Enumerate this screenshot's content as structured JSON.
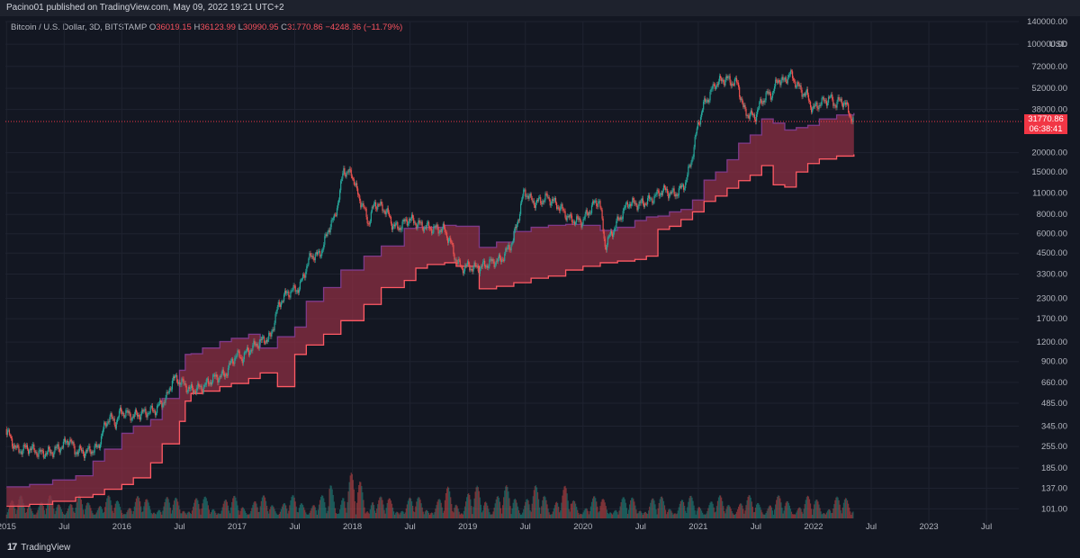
{
  "header": {
    "published": "Pacino01 published on TradingView.com, May 09, 2022 19:21 UTC+2"
  },
  "legend": {
    "symbol": "Bitcoin / U.S. Dollar, 3D, BITSTAMP",
    "open_label": "O",
    "open": "36019.15",
    "high_label": "H",
    "high": "36123.99",
    "low_label": "L",
    "low": "30990.95",
    "close_label": "C",
    "close": "31770.86",
    "change": "−4248.36 (−11.79%)"
  },
  "price_tag": {
    "price": "31770.86",
    "countdown": "06:38:41"
  },
  "footer": {
    "brand": "TradingView",
    "logo": "17"
  },
  "colors": {
    "background": "#131722",
    "up": "#26a69a",
    "down": "#ef5350",
    "band_fill": "#8c2f43",
    "band_bright": "#f7525f",
    "band_edge_top": "#7e3a8a",
    "band_edge_bottom": "#ff5a64",
    "last_price": "#f23645"
  },
  "chart_data": {
    "type": "line",
    "title": "Bitcoin / U.S. Dollar, 3D, BITSTAMP",
    "y_scale": "log",
    "y_unit": "USD",
    "y_ticks": [
      101,
      137,
      185,
      255,
      345,
      485,
      660,
      900,
      1200,
      1700,
      2300,
      3300,
      4500,
      6000,
      8000,
      11000,
      15000,
      20000,
      38000,
      52000,
      72000,
      100000,
      140000
    ],
    "y_tick_labels": [
      "101.00",
      "137.00",
      "185.00",
      "255.00",
      "345.00",
      "485.00",
      "660.00",
      "900.00",
      "1200.00",
      "1700.00",
      "2300.00",
      "3300.00",
      "4500.00",
      "6000.00",
      "8000.00",
      "11000.00",
      "15000.00",
      "20000.00",
      "38000.00",
      "52000.00",
      "72000.00",
      "100000.00",
      "140000.00"
    ],
    "ylim": [
      90,
      140000
    ],
    "x_ticks": [
      2015.0,
      2015.5,
      2016.0,
      2016.5,
      2017.0,
      2017.5,
      2018.0,
      2018.5,
      2019.0,
      2019.5,
      2020.0,
      2020.5,
      2021.0,
      2021.5,
      2022.0,
      2022.5,
      2023.0,
      2023.5
    ],
    "x_tick_labels": [
      "2015",
      "Jul",
      "2016",
      "Jul",
      "2017",
      "Jul",
      "2018",
      "Jul",
      "2019",
      "Jul",
      "2020",
      "Jul",
      "2021",
      "Jul",
      "2022",
      "Jul",
      "2023",
      "Jul"
    ],
    "xlim": [
      2014.99,
      2023.78
    ],
    "last_price": 31770.86,
    "series": [
      {
        "kind": "price",
        "x": [
          2015.0,
          2015.05,
          2015.1,
          2015.2,
          2015.3,
          2015.4,
          2015.5,
          2015.55,
          2015.6,
          2015.7,
          2015.8,
          2015.85,
          2015.9,
          2015.95,
          2016.0,
          2016.1,
          2016.2,
          2016.3,
          2016.4,
          2016.45,
          2016.5,
          2016.55,
          2016.6,
          2016.7,
          2016.8,
          2016.9,
          2017.0,
          2017.05,
          2017.1,
          2017.2,
          2017.3,
          2017.35,
          2017.4,
          2017.45,
          2017.5,
          2017.55,
          2017.6,
          2017.65,
          2017.7,
          2017.75,
          2017.8,
          2017.85,
          2017.9,
          2017.93,
          2017.96,
          2018.0,
          2018.05,
          2018.1,
          2018.15,
          2018.2,
          2018.3,
          2018.35,
          2018.4,
          2018.5,
          2018.6,
          2018.7,
          2018.8,
          2018.85,
          2018.9,
          2018.95,
          2019.0,
          2019.1,
          2019.2,
          2019.3,
          2019.4,
          2019.45,
          2019.5,
          2019.55,
          2019.6,
          2019.7,
          2019.8,
          2019.9,
          2020.0,
          2020.1,
          2020.15,
          2020.2,
          2020.3,
          2020.4,
          2020.5,
          2020.6,
          2020.7,
          2020.8,
          2020.85,
          2020.9,
          2020.95,
          2021.0,
          2021.05,
          2021.1,
          2021.15,
          2021.2,
          2021.25,
          2021.3,
          2021.35,
          2021.4,
          2021.45,
          2021.5,
          2021.55,
          2021.6,
          2021.65,
          2021.7,
          2021.75,
          2021.8,
          2021.85,
          2021.9,
          2021.95,
          2022.0,
          2022.05,
          2022.1,
          2022.15,
          2022.2,
          2022.25,
          2022.3,
          2022.35
        ],
        "y": [
          330,
          280,
          240,
          250,
          230,
          235,
          260,
          285,
          240,
          235,
          250,
          330,
          400,
          360,
          430,
          400,
          420,
          440,
          530,
          700,
          680,
          640,
          590,
          610,
          700,
          740,
          1000,
          950,
          1050,
          1200,
          1300,
          1900,
          2300,
          2500,
          2600,
          2700,
          3500,
          4400,
          4300,
          4800,
          6500,
          7500,
          11000,
          16000,
          14500,
          15000,
          11000,
          9000,
          7000,
          9500,
          8500,
          7000,
          6500,
          7500,
          6800,
          6500,
          6400,
          5500,
          4200,
          3600,
          3700,
          3600,
          3900,
          4100,
          5400,
          7800,
          11500,
          10000,
          9500,
          10300,
          9000,
          7400,
          7200,
          9300,
          9900,
          5000,
          7000,
          9500,
          9300,
          10000,
          11500,
          10800,
          11500,
          13000,
          18000,
          29000,
          40000,
          46000,
          55000,
          58000,
          60000,
          57000,
          56000,
          38000,
          35000,
          34000,
          42000,
          47000,
          48000,
          60000,
          57000,
          65000,
          57000,
          50000,
          47000,
          38000,
          41000,
          43000,
          45000,
          41000,
          44000,
          39000,
          31770
        ]
      },
      {
        "kind": "band_upper",
        "x": [
          2015.0,
          2015.2,
          2015.4,
          2015.6,
          2015.75,
          2015.85,
          2016.0,
          2016.1,
          2016.25,
          2016.35,
          2016.5,
          2016.55,
          2016.6,
          2016.7,
          2016.85,
          2016.95,
          2017.1,
          2017.2,
          2017.35,
          2017.5,
          2017.6,
          2017.75,
          2017.9,
          2018.1,
          2018.25,
          2018.45,
          2018.55,
          2018.65,
          2018.8,
          2018.9,
          2019.1,
          2019.25,
          2019.4,
          2019.55,
          2019.7,
          2019.85,
          2020.0,
          2020.15,
          2020.3,
          2020.45,
          2020.55,
          2020.65,
          2020.75,
          2020.85,
          2020.95,
          2021.05,
          2021.15,
          2021.25,
          2021.35,
          2021.45,
          2021.55,
          2021.65,
          2021.75,
          2021.85,
          2021.95,
          2022.05,
          2022.2,
          2022.35
        ],
        "y": [
          140,
          145,
          155,
          165,
          205,
          245,
          310,
          345,
          380,
          520,
          790,
          1000,
          1010,
          1100,
          1210,
          1270,
          1350,
          1100,
          1300,
          1500,
          2200,
          2700,
          3500,
          4300,
          5000,
          6500,
          6600,
          6600,
          6800,
          6700,
          4900,
          5300,
          6200,
          6600,
          6800,
          6900,
          6800,
          6300,
          6600,
          7300,
          7700,
          7800,
          8300,
          8600,
          9900,
          13300,
          15000,
          18000,
          23000,
          26000,
          33000,
          31000,
          28000,
          29000,
          30000,
          33000,
          35000,
          36000
        ]
      },
      {
        "kind": "band_lower",
        "x": [
          2015.0,
          2015.2,
          2015.4,
          2015.6,
          2015.75,
          2015.85,
          2016.0,
          2016.1,
          2016.25,
          2016.35,
          2016.5,
          2016.55,
          2016.6,
          2016.7,
          2016.85,
          2016.95,
          2017.1,
          2017.2,
          2017.35,
          2017.5,
          2017.6,
          2017.75,
          2017.9,
          2018.1,
          2018.25,
          2018.45,
          2018.55,
          2018.65,
          2018.8,
          2018.9,
          2019.1,
          2019.25,
          2019.4,
          2019.55,
          2019.7,
          2019.85,
          2020.0,
          2020.15,
          2020.3,
          2020.45,
          2020.55,
          2020.65,
          2020.75,
          2020.85,
          2020.95,
          2021.05,
          2021.15,
          2021.25,
          2021.35,
          2021.45,
          2021.55,
          2021.65,
          2021.75,
          2021.85,
          2021.95,
          2022.05,
          2022.2,
          2022.35
        ],
        "y": [
          105,
          108,
          113,
          120,
          125,
          135,
          145,
          160,
          200,
          265,
          370,
          500,
          560,
          580,
          620,
          650,
          700,
          760,
          620,
          1000,
          1150,
          1350,
          1650,
          2100,
          2700,
          3000,
          3600,
          3800,
          3900,
          3700,
          2650,
          2750,
          2900,
          3100,
          3200,
          3500,
          3700,
          3900,
          4000,
          4100,
          4300,
          6400,
          6700,
          7400,
          8300,
          9700,
          10500,
          11800,
          13200,
          14300,
          16500,
          12400,
          12000,
          15000,
          17000,
          18200,
          19000,
          19500
        ]
      }
    ]
  }
}
